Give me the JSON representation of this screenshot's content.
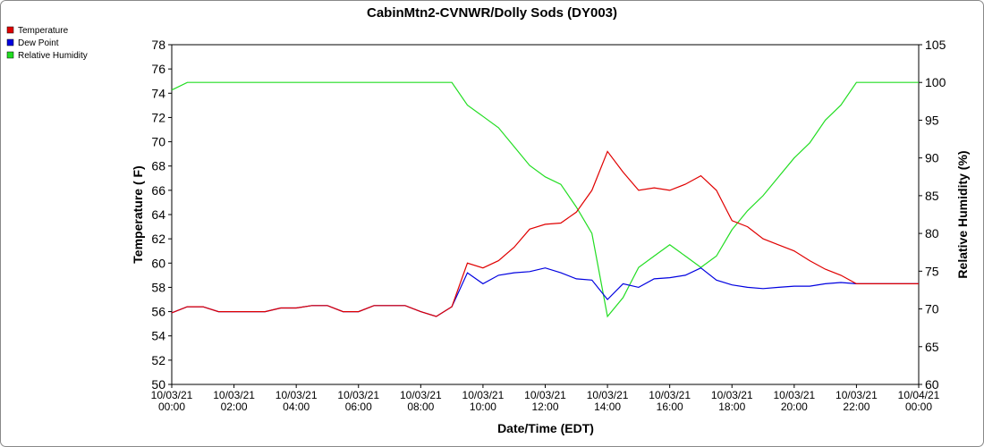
{
  "chart_data": {
    "type": "line",
    "title": "CabinMtn2-CVNWR/Dolly Sods (DY003)",
    "xlabel": "Date/Time (EDT)",
    "ylabel": "Temperature ( F)",
    "y2label": "Relative Humidity (%)",
    "x": [
      0,
      0.5,
      1,
      1.5,
      2,
      2.5,
      3,
      3.5,
      4,
      4.5,
      5,
      5.5,
      6,
      6.5,
      7,
      7.5,
      8,
      8.5,
      9,
      9.5,
      10,
      10.5,
      11,
      11.5,
      12,
      12.5,
      13,
      13.5,
      14,
      14.5,
      15,
      15.5,
      16,
      16.5,
      17,
      17.5,
      18,
      18.5,
      19,
      19.5,
      20,
      20.5,
      21,
      21.5,
      22,
      22.5,
      23,
      23.5,
      24
    ],
    "xlim": [
      0,
      24
    ],
    "xticks": [
      {
        "value": 0,
        "label": "10/03/21 00:00"
      },
      {
        "value": 2,
        "label": "10/03/21 02:00"
      },
      {
        "value": 4,
        "label": "10/03/21 04:00"
      },
      {
        "value": 6,
        "label": "10/03/21 06:00"
      },
      {
        "value": 8,
        "label": "10/03/21 08:00"
      },
      {
        "value": 10,
        "label": "10/03/21 10:00"
      },
      {
        "value": 12,
        "label": "10/03/21 12:00"
      },
      {
        "value": 14,
        "label": "10/03/21 14:00"
      },
      {
        "value": 16,
        "label": "10/03/21 16:00"
      },
      {
        "value": 18,
        "label": "10/03/21 18:00"
      },
      {
        "value": 20,
        "label": "10/03/21 20:00"
      },
      {
        "value": 22,
        "label": "10/03/21 22:00"
      },
      {
        "value": 24,
        "label": "10/04/21 00:00"
      }
    ],
    "ylim": [
      50,
      78
    ],
    "yticks": [
      50,
      52,
      54,
      56,
      58,
      60,
      62,
      64,
      66,
      68,
      70,
      72,
      74,
      76,
      78
    ],
    "y2lim": [
      60,
      105
    ],
    "y2ticks": [
      60,
      65,
      70,
      75,
      80,
      85,
      90,
      95,
      100,
      105
    ],
    "legend": "top-left",
    "series": [
      {
        "name": "Temperature",
        "color": "#e00000",
        "values": [
          55.9,
          56.4,
          56.4,
          56,
          56,
          56,
          56,
          56.3,
          56.3,
          56.5,
          56.5,
          56,
          56,
          56.5,
          56.5,
          56.5,
          56,
          55.6,
          56.4,
          60,
          59.6,
          60.2,
          61.3,
          62.8,
          63.2,
          63.3,
          64.2,
          66,
          69.2,
          67.5,
          66,
          66.2,
          66,
          66.5,
          67.2,
          66,
          63.5,
          63,
          62,
          61.5,
          61,
          60.2,
          59.5,
          59,
          58.3,
          58.3,
          58.3,
          58.3,
          58.3
        ]
      },
      {
        "name": "Dew Point",
        "color": "#0000e0",
        "values": [
          55.9,
          56.4,
          56.4,
          56,
          56,
          56,
          56,
          56.3,
          56.3,
          56.5,
          56.5,
          56,
          56,
          56.5,
          56.5,
          56.5,
          56,
          55.6,
          56.4,
          59.2,
          58.3,
          59,
          59.2,
          59.3,
          59.6,
          59.2,
          58.7,
          58.6,
          57,
          58.3,
          58,
          58.7,
          58.8,
          59,
          59.6,
          58.6,
          58.2,
          58,
          57.9,
          58,
          58.1,
          58.1,
          58.3,
          58.4,
          58.3,
          58.3,
          58.3,
          58.3,
          58.3
        ]
      },
      {
        "name": "Relative Humidity",
        "color": "#22dd22",
        "axis": "y2",
        "values": [
          99,
          100,
          100,
          100,
          100,
          100,
          100,
          100,
          100,
          100,
          100,
          100,
          100,
          100,
          100,
          100,
          100,
          100,
          100,
          97,
          95.5,
          94,
          91.5,
          89,
          87.5,
          86.5,
          83.5,
          80,
          69,
          71.5,
          75.5,
          77,
          78.5,
          77,
          75.5,
          77,
          80.5,
          83,
          85,
          87.5,
          90,
          92,
          95,
          97,
          100,
          100,
          100,
          100,
          100
        ]
      }
    ]
  }
}
